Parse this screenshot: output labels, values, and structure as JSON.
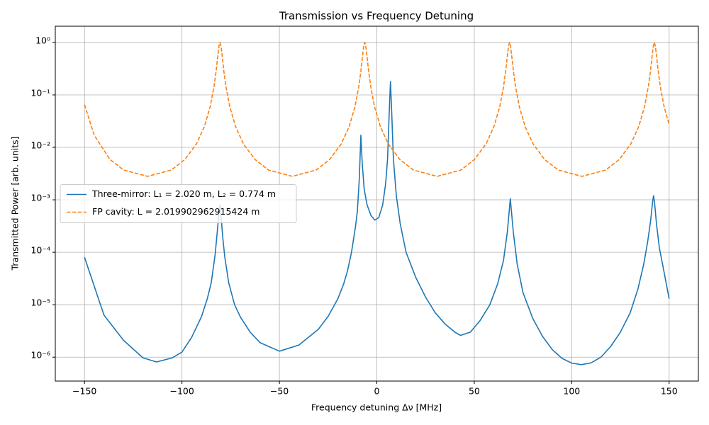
{
  "chart_data": {
    "type": "line",
    "title": "Transmission vs Frequency Detuning",
    "xlabel": "Frequency detuning Δν [MHz]",
    "ylabel": "Transmitted Power [arb. units]",
    "xlim": [
      -165,
      165
    ],
    "ylim": [
      3.5e-07,
      2.04
    ],
    "yscale": "log",
    "grid": true,
    "legend": "center left",
    "xticks": [
      {
        "value": -150,
        "label": "−150"
      },
      {
        "value": -100,
        "label": "−100"
      },
      {
        "value": -50,
        "label": "−50"
      },
      0,
      50,
      100,
      150
    ],
    "yticks": [
      {
        "value": 1e-06,
        "label": "10⁻⁶"
      },
      {
        "value": 1e-05,
        "label": "10⁻⁵"
      },
      {
        "value": 0.0001,
        "label": "10⁻⁴"
      },
      {
        "value": 0.001,
        "label": "10⁻³"
      },
      {
        "value": 0.01,
        "label": "10⁻²"
      },
      {
        "value": 0.1,
        "label": "10⁻¹"
      },
      {
        "value": 1,
        "label": "10⁰"
      }
    ],
    "series": [
      {
        "name": "Three-mirror: L₁ = 2.020 m, L₂ = 0.774 m",
        "color": "#1f77b4",
        "linestyle": "solid",
        "x": [
          -150,
          -140,
          -130,
          -120,
          -113,
          -105,
          -100,
          -95,
          -90,
          -87,
          -85,
          -83,
          -82,
          -81,
          -80.5,
          -80,
          -79,
          -78,
          -76,
          -73,
          -70,
          -65,
          -60,
          -50,
          -40,
          -30,
          -25,
          -20,
          -17,
          -15,
          -13,
          -11,
          -10,
          -9,
          -8.2,
          -7.5,
          -6.5,
          -5,
          -3,
          -1,
          1,
          3,
          4.5,
          5.5,
          6.3,
          7,
          7.7,
          8.5,
          10,
          12,
          15,
          20,
          25,
          30,
          35,
          40,
          43,
          48,
          53,
          58,
          62,
          65,
          67,
          68,
          68.5,
          69,
          70,
          72,
          75,
          80,
          85,
          90,
          95,
          100,
          105,
          110,
          115,
          120,
          125,
          130,
          134,
          137,
          139,
          140.5,
          141.5,
          142,
          142.5,
          143.5,
          145,
          147,
          150
        ],
        "values": [
          8e-05,
          6.3e-06,
          2.1e-06,
          9.7e-07,
          8.1e-07,
          9.7e-07,
          1.25e-06,
          2.4e-06,
          5.9e-06,
          1.3e-05,
          2.6e-05,
          8.9e-05,
          0.00022,
          0.00057,
          0.0008,
          0.0005,
          0.00018,
          8e-05,
          2.6e-05,
          1e-05,
          5.8e-06,
          3e-06,
          1.9e-06,
          1.3e-06,
          1.7e-06,
          3.4e-06,
          6e-06,
          1.3e-05,
          2.5e-05,
          4.5e-05,
          0.0001,
          0.0003,
          0.0006,
          0.0025,
          0.017,
          0.005,
          0.0016,
          0.0008,
          0.0005,
          0.00041,
          0.00046,
          0.0008,
          0.002,
          0.006,
          0.04,
          0.18,
          0.04,
          0.006,
          0.0012,
          0.00035,
          0.0001,
          3.3e-05,
          1.4e-05,
          7e-06,
          4.3e-06,
          3e-06,
          2.6e-06,
          3e-06,
          5e-06,
          1e-05,
          2.5e-05,
          7e-05,
          0.00025,
          0.00065,
          0.00105,
          0.00065,
          0.00025,
          6e-05,
          1.7e-05,
          5.5e-06,
          2.5e-06,
          1.4e-06,
          9.5e-07,
          7.7e-07,
          7.2e-07,
          7.8e-07,
          1e-06,
          1.6e-06,
          3e-06,
          7e-06,
          2e-05,
          6e-05,
          0.00016,
          0.0004,
          0.0009,
          0.0012,
          0.0009,
          0.00035,
          0.00012,
          5e-05,
          1.3e-05
        ]
      },
      {
        "name": "FP cavity: L = 2.019902962915424 m",
        "color": "#ff7f0e",
        "linestyle": "dashed",
        "x": [
          -150,
          -145,
          -137,
          -130,
          -117.65,
          -105.5,
          -98.5,
          -92.5,
          -88.5,
          -85.5,
          -83.5,
          -82.5,
          -81.5,
          -81,
          -80.5,
          -80,
          -79.5,
          -78.5,
          -77.5,
          -75.5,
          -72.5,
          -68.5,
          -62.5,
          -55.5,
          -43.35,
          -31.2,
          -24.2,
          -18.2,
          -14.2,
          -11.2,
          -9.2,
          -8.2,
          -7.2,
          -6.7,
          -6.2,
          -5.7,
          -5.2,
          -4.2,
          -3.2,
          -1.2,
          1.8,
          5.8,
          11.8,
          18.8,
          30.95,
          43.1,
          50.1,
          56.1,
          60.1,
          63.1,
          65.1,
          66.1,
          67.1,
          67.6,
          68.1,
          68.6,
          69.1,
          70.1,
          71.1,
          73.1,
          76.1,
          80.1,
          86.1,
          93.1,
          105.25,
          117.4,
          124.4,
          130.4,
          134.4,
          137.4,
          139.4,
          140.4,
          141.4,
          141.9,
          142.4,
          142.9,
          143.4,
          144.4,
          145.4,
          147.4,
          150
        ],
        "values": [
          0.065,
          0.017,
          0.0059,
          0.0037,
          0.0028,
          0.00369,
          0.00587,
          0.01175,
          0.0249,
          0.06,
          0.149,
          0.282,
          0.611,
          0.863,
          1,
          0.863,
          0.611,
          0.282,
          0.149,
          0.06,
          0.0249,
          0.01175,
          0.00587,
          0.00369,
          0.0028,
          0.00369,
          0.00587,
          0.01175,
          0.0249,
          0.06,
          0.149,
          0.282,
          0.611,
          0.863,
          1,
          0.863,
          0.611,
          0.282,
          0.149,
          0.06,
          0.0249,
          0.01175,
          0.00587,
          0.00369,
          0.0028,
          0.00369,
          0.00587,
          0.01175,
          0.0249,
          0.06,
          0.149,
          0.282,
          0.611,
          0.863,
          1,
          0.863,
          0.611,
          0.282,
          0.149,
          0.06,
          0.0249,
          0.01175,
          0.00587,
          0.00369,
          0.0028,
          0.00369,
          0.00587,
          0.01175,
          0.0249,
          0.06,
          0.149,
          0.282,
          0.611,
          0.863,
          1,
          0.863,
          0.611,
          0.282,
          0.149,
          0.06,
          0.0274
        ]
      }
    ]
  }
}
